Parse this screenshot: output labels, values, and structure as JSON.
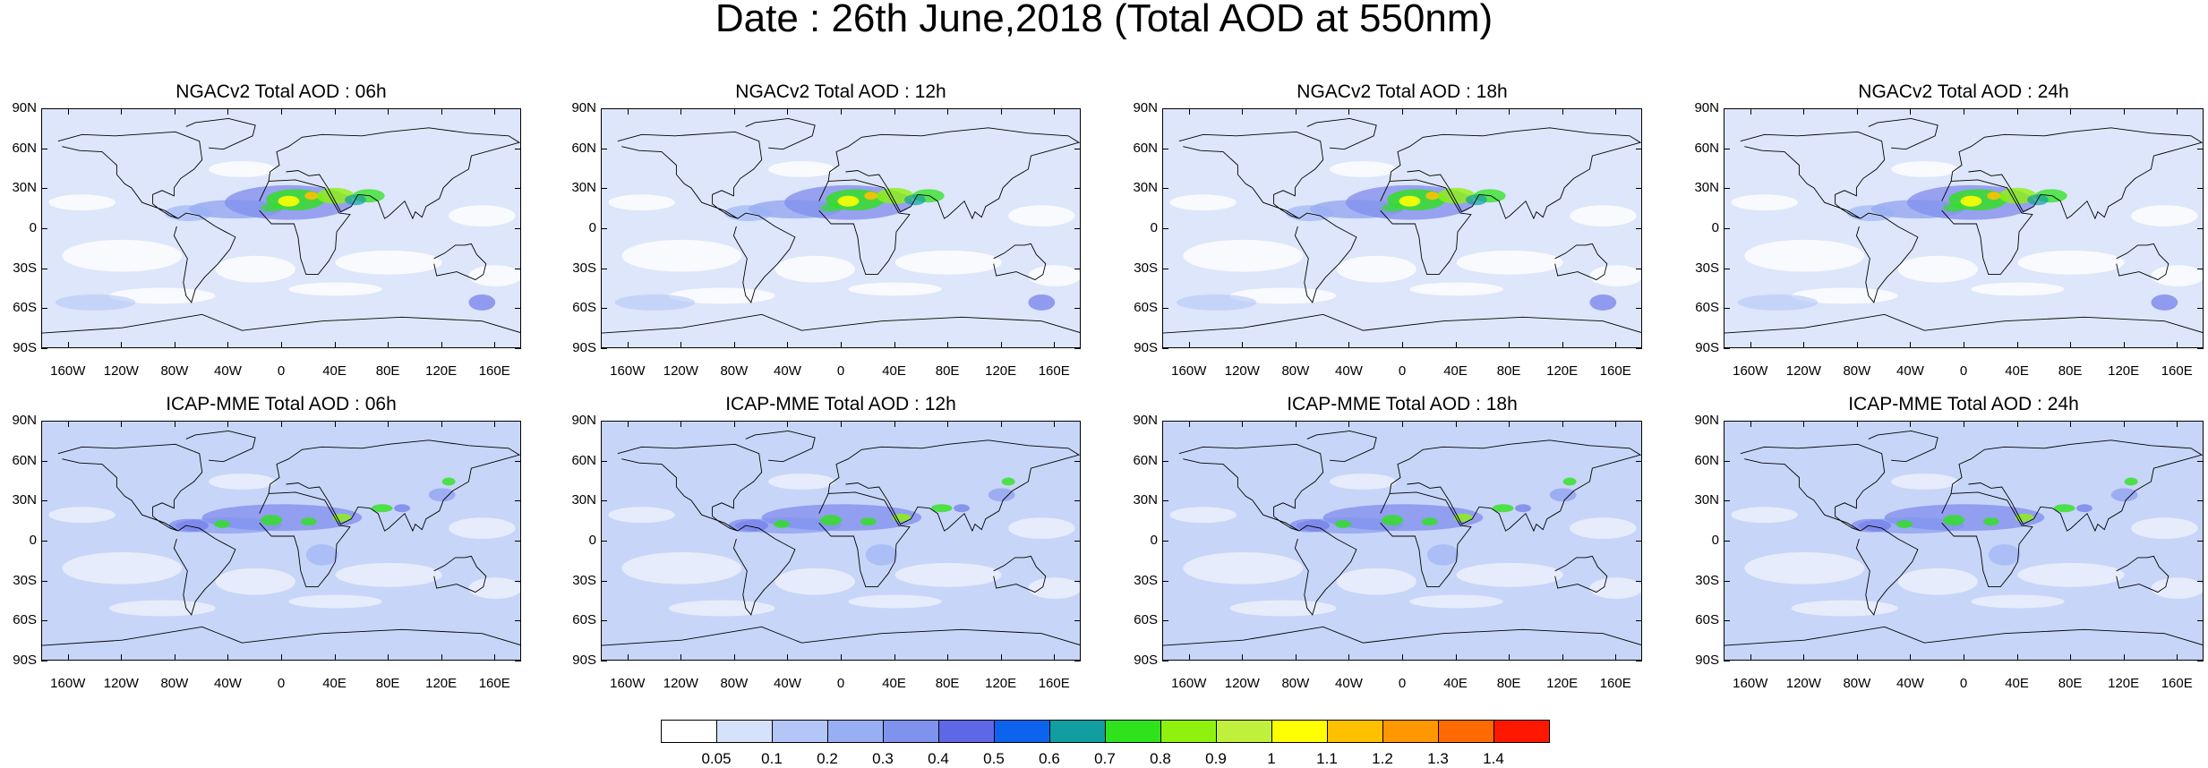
{
  "title": "Date : 26th June,2018 (Total AOD at 550nm)",
  "panels": [
    {
      "title": "NGACv2 Total AOD : 06h",
      "model": "NGACv2",
      "hour": "06h"
    },
    {
      "title": "NGACv2 Total AOD : 12h",
      "model": "NGACv2",
      "hour": "12h"
    },
    {
      "title": "NGACv2 Total AOD : 18h",
      "model": "NGACv2",
      "hour": "18h"
    },
    {
      "title": "NGACv2 Total AOD : 24h",
      "model": "NGACv2",
      "hour": "24h"
    },
    {
      "title": "ICAP-MME Total AOD : 06h",
      "model": "ICAP-MME",
      "hour": "06h"
    },
    {
      "title": "ICAP-MME Total AOD : 12h",
      "model": "ICAP-MME",
      "hour": "12h"
    },
    {
      "title": "ICAP-MME Total AOD : 18h",
      "model": "ICAP-MME",
      "hour": "18h"
    },
    {
      "title": "ICAP-MME Total AOD : 24h",
      "model": "ICAP-MME",
      "hour": "24h"
    }
  ],
  "lat_labels": [
    "90N",
    "60N",
    "30N",
    "0",
    "30S",
    "60S",
    "90S"
  ],
  "lat_values": [
    90,
    60,
    30,
    0,
    -30,
    -60,
    -90
  ],
  "lon_labels": [
    "160W",
    "120W",
    "80W",
    "40W",
    "0",
    "40E",
    "80E",
    "120E",
    "160E"
  ],
  "lon_values": [
    -160,
    -120,
    -80,
    -40,
    0,
    40,
    80,
    120,
    160
  ],
  "colorbar": {
    "labels": [
      "0.05",
      "0.1",
      "0.2",
      "0.3",
      "0.4",
      "0.5",
      "0.6",
      "0.7",
      "0.8",
      "0.9",
      "1",
      "1.1",
      "1.2",
      "1.3",
      "1.4"
    ],
    "colors": [
      "#ffffff",
      "#d6e1fb",
      "#b4c6f7",
      "#98aff3",
      "#7f93ee",
      "#5e68e6",
      "#0c64ee",
      "#109ea0",
      "#2ee21c",
      "#8ef20e",
      "#bff13c",
      "#ffff00",
      "#ffc000",
      "#ff9800",
      "#ff6b00",
      "#ff1800"
    ]
  }
}
